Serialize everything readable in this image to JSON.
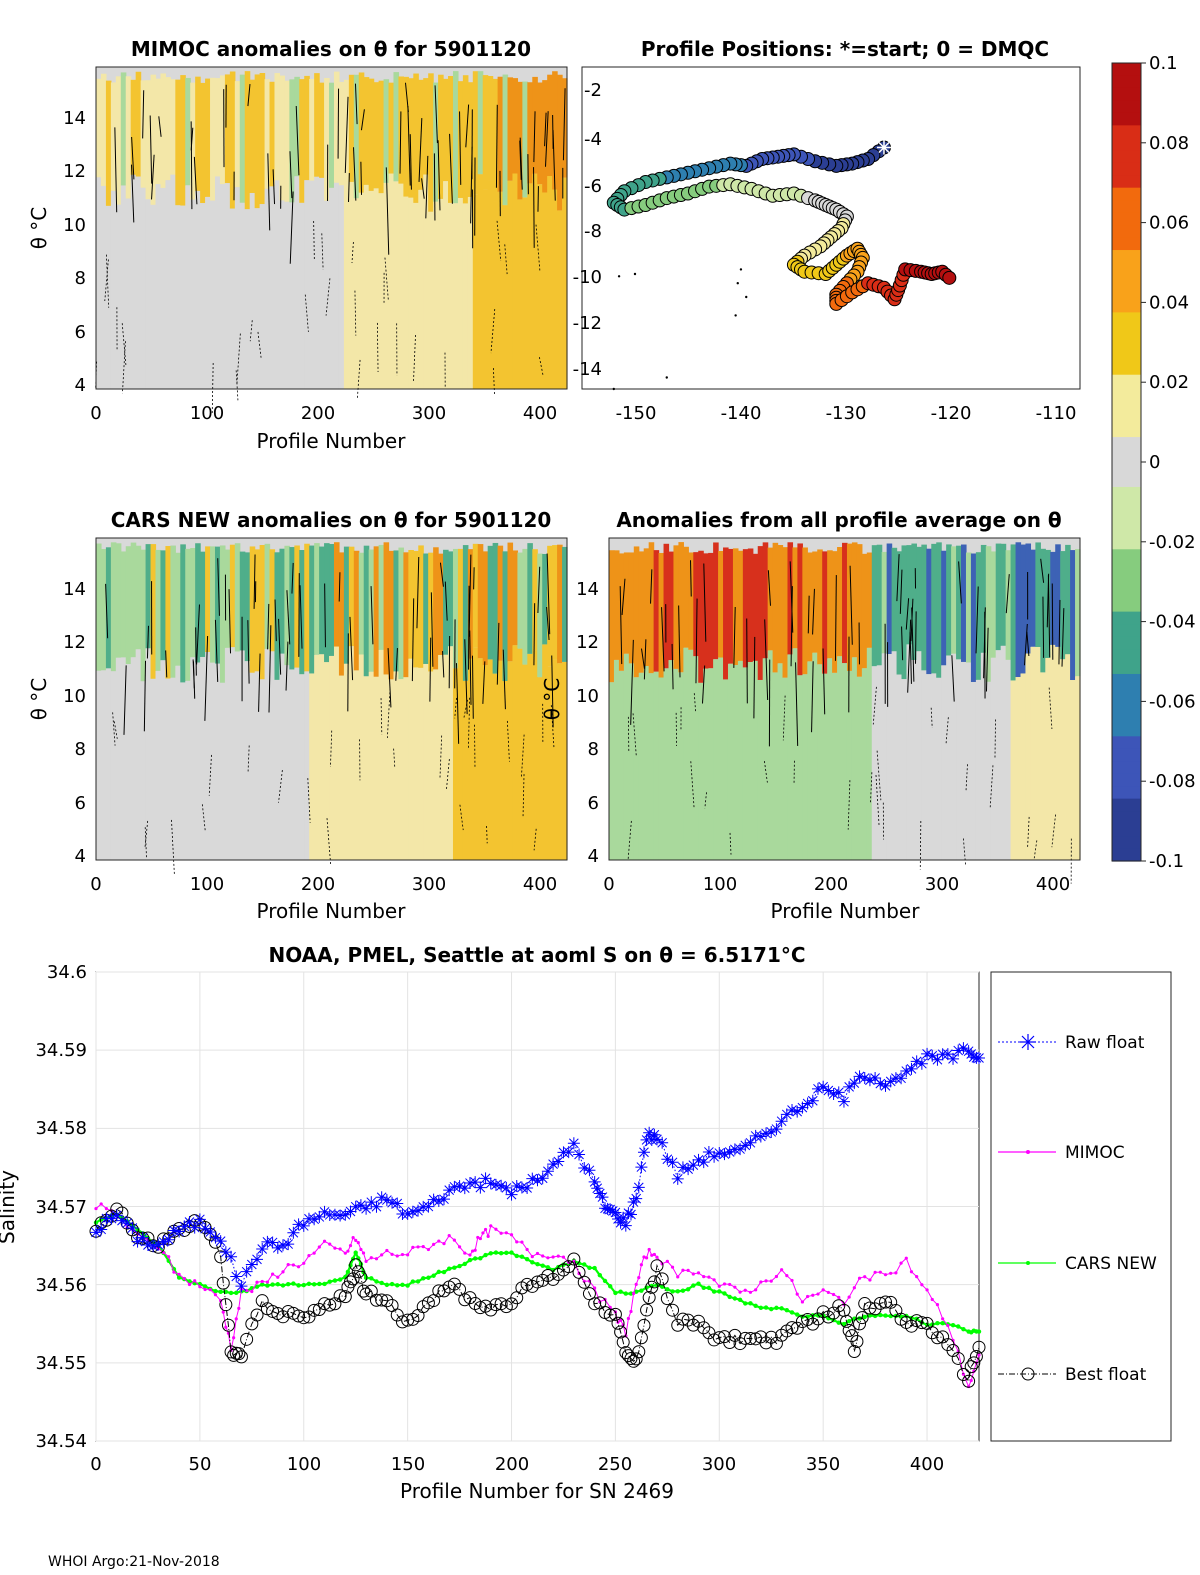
{
  "footer": "WHOI Argo:21-Nov-2018",
  "chart_data": [
    {
      "type": "heatmap",
      "title": "MIMOC anomalies on θ  for 5901120",
      "xlabel": "Profile Number",
      "ylabel": "θ °C",
      "xlim": [
        0,
        425
      ],
      "ylim": [
        3.8,
        15.8
      ],
      "xticks": [
        0,
        100,
        200,
        300,
        400
      ],
      "yticks": [
        4,
        6,
        8,
        10,
        12,
        14
      ],
      "xtick_labels": [
        "0",
        "100",
        "200",
        "300",
        "400"
      ],
      "ytick_labels": [
        "4",
        "6",
        "8",
        "10",
        "12",
        "14"
      ]
    },
    {
      "type": "scatter",
      "title": "Profile Positions: *=start; 0 = DMQC",
      "xlim": [
        -154,
        -107
      ],
      "ylim": [
        -15,
        -1
      ],
      "xticks": [
        -150,
        -140,
        -130,
        -120,
        -110
      ],
      "yticks": [
        -2,
        -4,
        -6,
        -8,
        -10,
        -12,
        -14
      ],
      "xtick_labels": [
        "-150",
        "-140",
        "-130",
        "-120",
        "-110"
      ],
      "ytick_labels": [
        "-2",
        "-4",
        "-6",
        "-8",
        "-10",
        "-12",
        "-14"
      ],
      "track_lon": [
        -125.5,
        -127,
        -128.5,
        -130,
        -132,
        -134,
        -135.5,
        -137,
        -138.5,
        -140,
        -142,
        -144,
        -146,
        -148,
        -150,
        -151,
        -150,
        -148,
        -146,
        -144,
        -142,
        -140,
        -138,
        -136,
        -134,
        -132,
        -131,
        -130,
        -129,
        -129.5,
        -130.5,
        -131.5,
        -133,
        -134,
        -133,
        -131,
        -130,
        -129,
        -128,
        -127.5,
        -128,
        -129,
        -130,
        -130,
        -128.5,
        -127,
        -125.5,
        -124.5,
        -124,
        -123.5,
        -122,
        -121,
        -120,
        -119
      ],
      "track_lat": [
        -4.5,
        -5.0,
        -5.2,
        -5.3,
        -5.1,
        -4.8,
        -4.9,
        -5.0,
        -5.3,
        -5.2,
        -5.4,
        -5.6,
        -5.8,
        -6.0,
        -6.4,
        -6.9,
        -7.2,
        -7.0,
        -6.7,
        -6.5,
        -6.2,
        -6.1,
        -6.3,
        -6.6,
        -6.5,
        -6.8,
        -7.0,
        -7.2,
        -7.5,
        -8.0,
        -8.4,
        -8.8,
        -9.2,
        -9.6,
        -9.9,
        -10.0,
        -9.6,
        -9.2,
        -8.9,
        -9.3,
        -9.9,
        -10.4,
        -10.9,
        -11.3,
        -10.8,
        -10.4,
        -10.6,
        -11.1,
        -10.5,
        -9.8,
        -9.9,
        -10.0,
        -9.9,
        -10.3
      ]
    },
    {
      "type": "heatmap",
      "title": "CARS NEW anomalies on θ for 5901120",
      "xlabel": "Profile Number",
      "ylabel": "θ °C",
      "xlim": [
        0,
        425
      ],
      "ylim": [
        3.8,
        15.8
      ],
      "xticks": [
        0,
        100,
        200,
        300,
        400
      ],
      "yticks": [
        4,
        6,
        8,
        10,
        12,
        14
      ],
      "xtick_labels": [
        "0",
        "100",
        "200",
        "300",
        "400"
      ],
      "ytick_labels": [
        "4",
        "6",
        "8",
        "10",
        "12",
        "14"
      ]
    },
    {
      "type": "heatmap",
      "title": "Anomalies from all profile average on θ",
      "xlabel": "Profile Number",
      "ylabel": "θ °C",
      "xlim": [
        0,
        425
      ],
      "ylim": [
        3.8,
        15.8
      ],
      "xticks": [
        0,
        100,
        200,
        300,
        400
      ],
      "yticks": [
        4,
        6,
        8,
        10,
        12,
        14
      ],
      "xtick_labels": [
        "0",
        "100",
        "200",
        "300",
        "400"
      ],
      "ytick_labels": [
        "4",
        "6",
        "8",
        "10",
        "12",
        "14"
      ]
    },
    {
      "type": "line",
      "title": "NOAA, PMEL, Seattle at aoml S on θ = 6.5171°C",
      "xlabel": "Profile Number for SN 2469",
      "ylabel": "Salinity",
      "xlim": [
        0,
        425
      ],
      "ylim": [
        34.54,
        34.6
      ],
      "xticks": [
        0,
        50,
        100,
        150,
        200,
        250,
        300,
        350,
        400
      ],
      "yticks": [
        34.54,
        34.55,
        34.56,
        34.57,
        34.58,
        34.59,
        34.6
      ],
      "xtick_labels": [
        "0",
        "50",
        "100",
        "150",
        "200",
        "250",
        "300",
        "350",
        "400"
      ],
      "ytick_labels": [
        "34.54",
        "34.55",
        "34.56",
        "34.57",
        "34.58",
        "34.59",
        "34.6"
      ],
      "legend_position": "outside-right",
      "series": [
        {
          "name": "Raw float",
          "color": "#0000ff",
          "marker": "star",
          "x": [
            0,
            10,
            20,
            30,
            40,
            50,
            60,
            70,
            80,
            90,
            100,
            110,
            120,
            130,
            140,
            150,
            160,
            170,
            180,
            190,
            200,
            210,
            220,
            230,
            240,
            245,
            250,
            255,
            260,
            265,
            270,
            280,
            290,
            300,
            310,
            320,
            330,
            340,
            350,
            360,
            370,
            380,
            390,
            400,
            410,
            420,
            425
          ],
          "y": [
            34.567,
            34.569,
            34.566,
            34.565,
            34.567,
            34.568,
            34.566,
            34.56,
            34.565,
            34.565,
            34.568,
            34.569,
            34.569,
            34.57,
            34.571,
            34.569,
            34.57,
            34.572,
            34.573,
            34.573,
            34.572,
            34.573,
            34.575,
            34.578,
            34.573,
            34.57,
            34.569,
            34.568,
            34.571,
            34.579,
            34.579,
            34.574,
            34.576,
            34.577,
            34.577,
            34.579,
            34.581,
            34.583,
            34.585,
            34.584,
            34.587,
            34.586,
            34.587,
            34.589,
            34.589,
            34.59,
            34.589
          ]
        },
        {
          "name": "MIMOC",
          "color": "#ff00ff",
          "marker": "dot",
          "x": [
            0,
            10,
            20,
            30,
            40,
            50,
            60,
            65,
            70,
            80,
            90,
            100,
            110,
            120,
            125,
            130,
            140,
            150,
            160,
            170,
            180,
            185,
            190,
            200,
            210,
            220,
            230,
            240,
            250,
            255,
            260,
            265,
            270,
            280,
            290,
            300,
            310,
            320,
            330,
            340,
            350,
            360,
            370,
            380,
            390,
            400,
            410,
            420,
            425
          ],
          "y": [
            34.57,
            34.569,
            34.566,
            34.565,
            34.561,
            34.56,
            34.558,
            34.552,
            34.559,
            34.56,
            34.562,
            34.563,
            34.565,
            34.564,
            34.566,
            34.563,
            34.564,
            34.564,
            34.565,
            34.566,
            34.564,
            34.566,
            34.567,
            34.566,
            34.564,
            34.564,
            34.563,
            34.559,
            34.556,
            34.554,
            34.56,
            34.564,
            34.564,
            34.561,
            34.562,
            34.56,
            34.559,
            34.56,
            34.562,
            34.558,
            34.559,
            34.558,
            34.561,
            34.561,
            34.563,
            34.559,
            34.555,
            34.547,
            34.551
          ]
        },
        {
          "name": "CARS NEW",
          "color": "#00ff00",
          "marker": "dot",
          "x": [
            0,
            10,
            20,
            30,
            40,
            50,
            60,
            70,
            80,
            90,
            100,
            110,
            120,
            125,
            130,
            140,
            150,
            160,
            170,
            180,
            190,
            200,
            210,
            220,
            230,
            240,
            250,
            260,
            270,
            280,
            290,
            300,
            310,
            320,
            330,
            340,
            350,
            360,
            370,
            380,
            390,
            400,
            410,
            420,
            425
          ],
          "y": [
            34.568,
            34.569,
            34.567,
            34.565,
            34.561,
            34.56,
            34.559,
            34.559,
            34.56,
            34.56,
            34.56,
            34.56,
            34.561,
            34.564,
            34.561,
            34.56,
            34.56,
            34.561,
            34.562,
            34.563,
            34.564,
            34.564,
            34.563,
            34.562,
            34.563,
            34.562,
            34.559,
            34.559,
            34.56,
            34.559,
            34.56,
            34.559,
            34.558,
            34.557,
            34.557,
            34.556,
            34.556,
            34.555,
            34.556,
            34.556,
            34.556,
            34.555,
            34.555,
            34.554,
            34.554
          ]
        },
        {
          "name": "Best float",
          "color": "#000000",
          "marker": "circle",
          "x": [
            0,
            10,
            20,
            30,
            40,
            50,
            60,
            65,
            70,
            80,
            90,
            100,
            110,
            120,
            125,
            130,
            140,
            150,
            160,
            170,
            180,
            190,
            200,
            210,
            220,
            230,
            240,
            250,
            255,
            260,
            265,
            270,
            280,
            290,
            300,
            310,
            320,
            330,
            340,
            350,
            360,
            365,
            370,
            380,
            390,
            400,
            410,
            420,
            425
          ],
          "y": [
            34.567,
            34.57,
            34.566,
            34.565,
            34.567,
            34.568,
            34.564,
            34.551,
            34.551,
            34.558,
            34.556,
            34.556,
            34.557,
            34.559,
            34.562,
            34.559,
            34.558,
            34.555,
            34.558,
            34.56,
            34.558,
            34.557,
            34.558,
            34.56,
            34.561,
            34.563,
            34.558,
            34.556,
            34.551,
            34.55,
            34.557,
            34.562,
            34.555,
            34.555,
            34.553,
            34.553,
            34.553,
            34.553,
            34.555,
            34.556,
            34.557,
            34.552,
            34.557,
            34.558,
            34.555,
            34.555,
            34.552,
            34.548,
            34.552
          ]
        }
      ]
    }
  ],
  "colorbar": {
    "min": -0.1,
    "max": 0.1,
    "tick_labels": [
      "0.1",
      "0.08",
      "0.06",
      "0.04",
      "0.02",
      "0",
      "-0.02",
      "-0.04",
      "-0.06",
      "-0.08",
      "-0.1"
    ],
    "tick_values": [
      0.1,
      0.08,
      0.06,
      0.04,
      0.02,
      0,
      -0.02,
      -0.04,
      -0.06,
      -0.08,
      -0.1
    ],
    "colors": [
      "#b40f0f",
      "#d92d16",
      "#f26a0d",
      "#f9a21a",
      "#f0c818",
      "#f3eb9c",
      "#d8d8d8",
      "#cfe8a8",
      "#86cc7e",
      "#3fa38a",
      "#2e7fb0",
      "#3d55b8",
      "#2b3e93"
    ]
  },
  "colors": {
    "neutral": "#d9d9d9",
    "warm_light": "#f3e7a8",
    "warm_mid": "#f3c430",
    "warm_strong": "#ee9318",
    "hot": "#d7301c",
    "cool_light": "#a9d99c",
    "cool_mid": "#4fae8a",
    "cool_strong": "#3d62b5"
  }
}
